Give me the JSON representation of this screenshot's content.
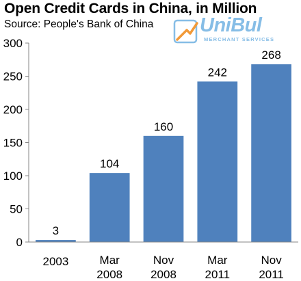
{
  "header": {
    "title": "Open Credit Cards in China, in Million",
    "subtitle": "Source: People's Bank of China"
  },
  "logo": {
    "name": "UniBul",
    "tagline": "MERCHANT SERVICES",
    "icon": "card-swipe-icon",
    "color": "#86bde6",
    "accent": "#f29a38"
  },
  "chart_data": {
    "type": "bar",
    "categories": [
      [
        "2003"
      ],
      [
        "Mar",
        "2008"
      ],
      [
        "Nov",
        "2008"
      ],
      [
        "Mar",
        "2011"
      ],
      [
        "Nov",
        "2011"
      ]
    ],
    "values": [
      3,
      104,
      160,
      242,
      268
    ],
    "data_labels": [
      "3",
      "104",
      "160",
      "242",
      "268"
    ],
    "title": "Open Credit Cards in China, in Million",
    "subtitle": "Source: People's Bank of China",
    "xlabel": "",
    "ylabel": "",
    "ylim": [
      0,
      300
    ],
    "yticks": [
      0,
      50,
      100,
      150,
      200,
      250,
      300
    ],
    "grid": false,
    "legend": "none",
    "bar_color": "#4f81bd"
  }
}
